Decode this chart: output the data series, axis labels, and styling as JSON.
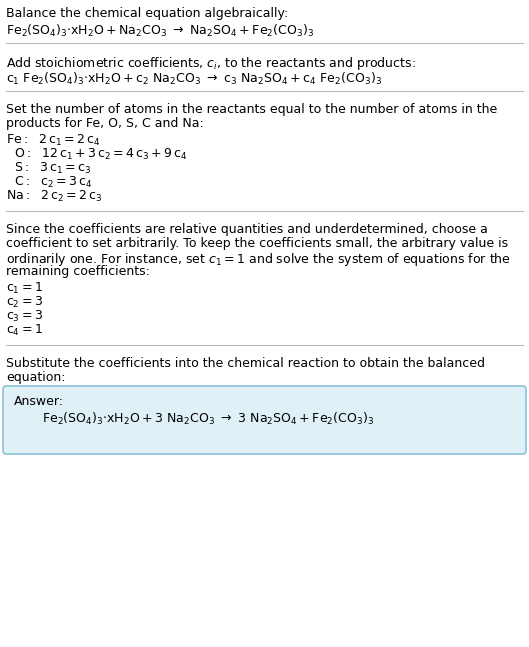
{
  "title_line1": "Balance the chemical equation algebraically:",
  "section2_header": "Add stoichiometric coefficients, $c_i$, to the reactants and products:",
  "section3_header_1": "Set the number of atoms in the reactants equal to the number of atoms in the",
  "section3_header_2": "products for Fe, O, S, C and Na:",
  "section4_line1": "Since the coefficients are relative quantities and underdetermined, choose a",
  "section4_line2": "coefficient to set arbitrarily. To keep the coefficients small, the arbitrary value is",
  "section4_line3": "ordinarily one. For instance, set $c_1 = 1$ and solve the system of equations for the",
  "section4_line4": "remaining coefficients:",
  "section5_line1": "Substitute the coefficients into the chemical reaction to obtain the balanced",
  "section5_line2": "equation:",
  "answer_label": "Answer:",
  "bg_color": "#ffffff",
  "answer_box_facecolor": "#dff0f7",
  "answer_box_edgecolor": "#89c4d8",
  "text_color": "#000000",
  "line_color": "#bbbbbb",
  "fs": 9.0,
  "fs_eq": 9.0
}
